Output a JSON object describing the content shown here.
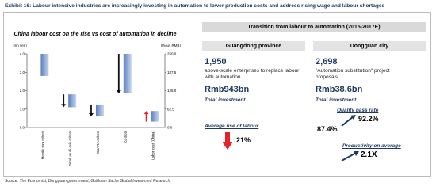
{
  "header": {
    "title": "Exhibit 16: Labour intensive industries are increasingly investing in automation to lower production costs and address rising wage and labour shortages"
  },
  "chart_data": {
    "type": "floating-bar",
    "title": "China labour cost on the rise vs cost of automation in decline",
    "y_label": "(mn yen)",
    "y2_label": "(thous RMB)",
    "categories": [
      "Mobile size robots",
      "Small multi axis robots",
      "SCARA robots",
      "Co-bots",
      "Labor cost (China)"
    ],
    "from": [
      4.0,
      1.8,
      1.25,
      4.0,
      20
    ],
    "to": [
      2.8,
      1.1,
      0.6,
      1.85,
      56
    ],
    "axis": [
      "y",
      "y",
      "y",
      "y",
      "y2"
    ],
    "arrow": [
      false,
      true,
      true,
      true,
      true
    ],
    "color": "#5b7fc0",
    "arrow_color": "#111111",
    "rise_color": "#e8202a",
    "ylim": [
      0,
      4
    ],
    "yticks": [
      {
        "value": 0,
        "label": "0.0"
      },
      {
        "value": 1,
        "label": "1.0"
      },
      {
        "value": 2,
        "label": "2.0"
      },
      {
        "value": 3,
        "label": "3.0"
      },
      {
        "value": 4,
        "label": "4.0"
      }
    ],
    "y2lim": [
      0,
      250
    ],
    "y2ticks": [
      {
        "value": 0,
        "label": "0.0"
      },
      62.5,
      {
        "value": 125,
        "label": "125.0"
      },
      187.5,
      {
        "value": 250,
        "label": "250.0"
      }
    ]
  },
  "panel": {
    "title": "Transition from labour to automation (2015-2017E)",
    "left": {
      "heading": "Guangdong province",
      "count": "1,950",
      "count_text": "above-scale enterprises to replace labour with automation",
      "investment": "Rmb943bn",
      "investment_label": "Total investment",
      "labour_label": "Average use of labour",
      "labour_change": "21%"
    },
    "right": {
      "heading": "Dongguan city",
      "count": "2,698",
      "count_text": "\"Automation substitution\" project proposals",
      "investment": "Rmb38.6bn",
      "investment_label": "Total investment",
      "quality_label": "Quality pass rate",
      "quality_before": "87.4%",
      "quality_after": "92.2%",
      "productivity_label": "Productivity on average",
      "productivity": "2.1X"
    }
  },
  "source": "Source: The Economist, Dongguan government, Goldman Sachs Global Investment Research."
}
